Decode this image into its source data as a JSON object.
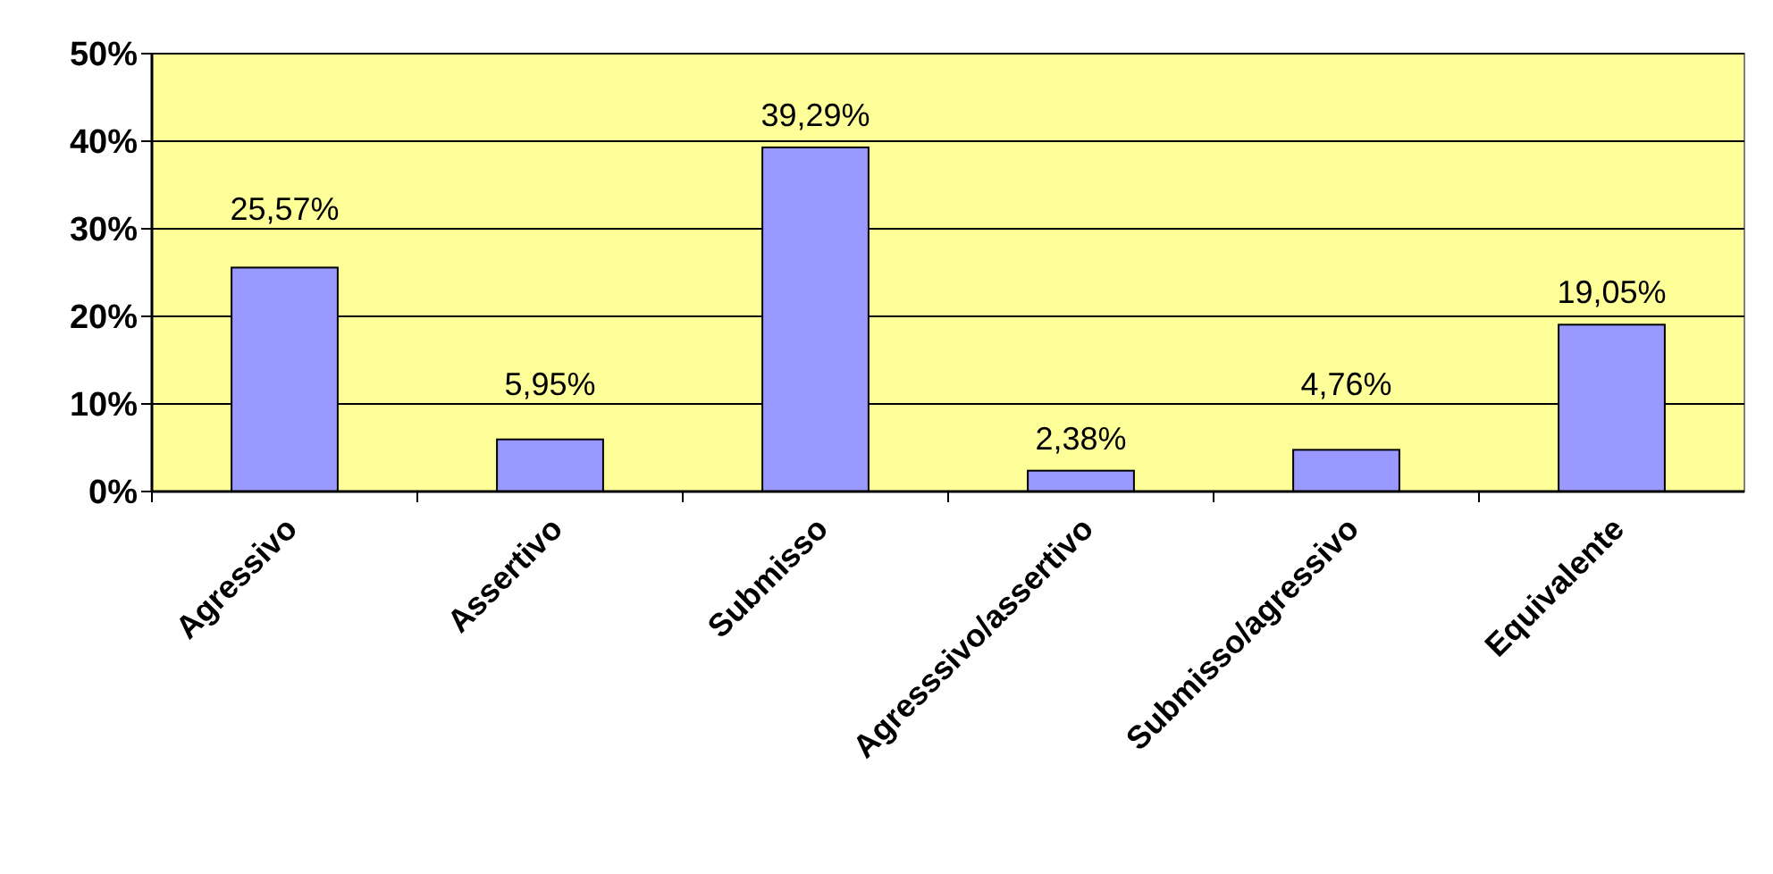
{
  "chart_data": {
    "type": "bar",
    "categories": [
      "Agressivo",
      "Assertivo",
      "Submisso",
      "Agresssivo/assertivo",
      "Submisso/agressivo",
      "Equivalente"
    ],
    "values": [
      25.57,
      5.95,
      39.29,
      2.38,
      4.76,
      19.05
    ],
    "value_labels": [
      "25,57%",
      "5,95%",
      "39,29%",
      "2,38%",
      "4,76%",
      "19,05%"
    ],
    "color": "#9999ff",
    "ylim": [
      0,
      50
    ],
    "yticks": [
      {
        "value": 0,
        "label": "0%"
      },
      {
        "value": 10,
        "label": "10%"
      },
      {
        "value": 20,
        "label": "20%"
      },
      {
        "value": 30,
        "label": "30%"
      },
      {
        "value": 40,
        "label": "40%"
      },
      {
        "value": 50,
        "label": "50%"
      }
    ],
    "grid": "y"
  }
}
